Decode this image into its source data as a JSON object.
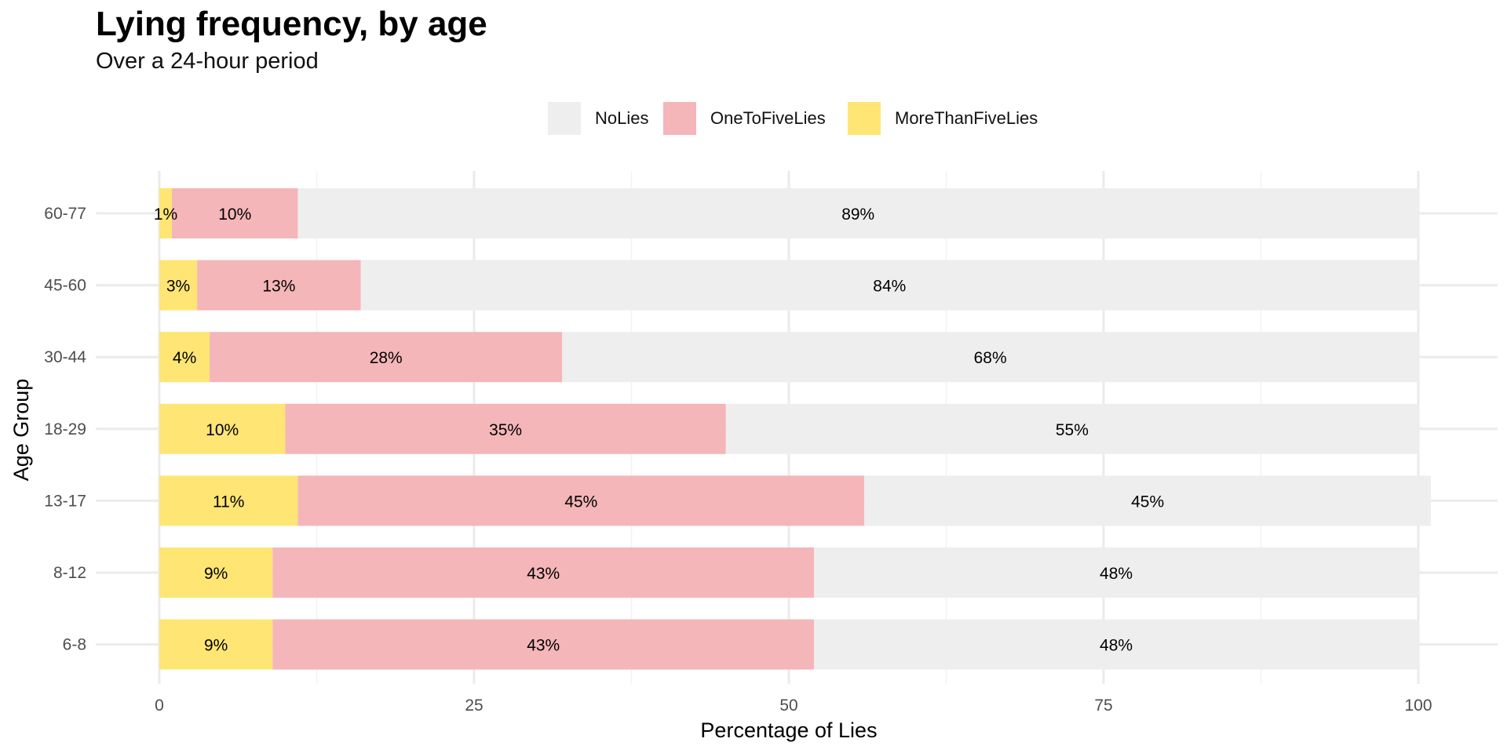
{
  "chart_data": {
    "type": "bar",
    "orientation": "horizontal",
    "stacked": true,
    "title": "Lying frequency, by age",
    "subtitle": "Over a 24-hour period",
    "xlabel": "Percentage of Lies",
    "ylabel": "Age Group",
    "xlim": [
      0,
      100
    ],
    "x_ticks": [
      "0",
      "25",
      "50",
      "75",
      "100"
    ],
    "categories": [
      "60-77",
      "45-60",
      "30-44",
      "18-29",
      "13-17",
      "8-12",
      "6-8"
    ],
    "series": [
      {
        "name": "MoreThanFiveLies",
        "color": "#FFE574",
        "values": [
          1,
          3,
          4,
          10,
          11,
          9,
          9
        ],
        "labels": [
          "1%",
          "3%",
          "4%",
          "10%",
          "11%",
          "9%",
          "9%"
        ]
      },
      {
        "name": "OneToFiveLies",
        "color": "#F4B6B9",
        "values": [
          10,
          13,
          28,
          35,
          45,
          43,
          43
        ],
        "labels": [
          "10%",
          "13%",
          "28%",
          "35%",
          "45%",
          "43%",
          "43%"
        ]
      },
      {
        "name": "NoLies",
        "color": "#EEEEEE",
        "values": [
          89,
          84,
          68,
          55,
          45,
          48,
          48
        ],
        "labels": [
          "89%",
          "84%",
          "68%",
          "55%",
          "45%",
          "48%",
          "48%"
        ]
      }
    ],
    "legend": {
      "position": "top",
      "order": [
        "NoLies",
        "OneToFiveLies",
        "MoreThanFiveLies"
      ]
    },
    "grid": true
  }
}
